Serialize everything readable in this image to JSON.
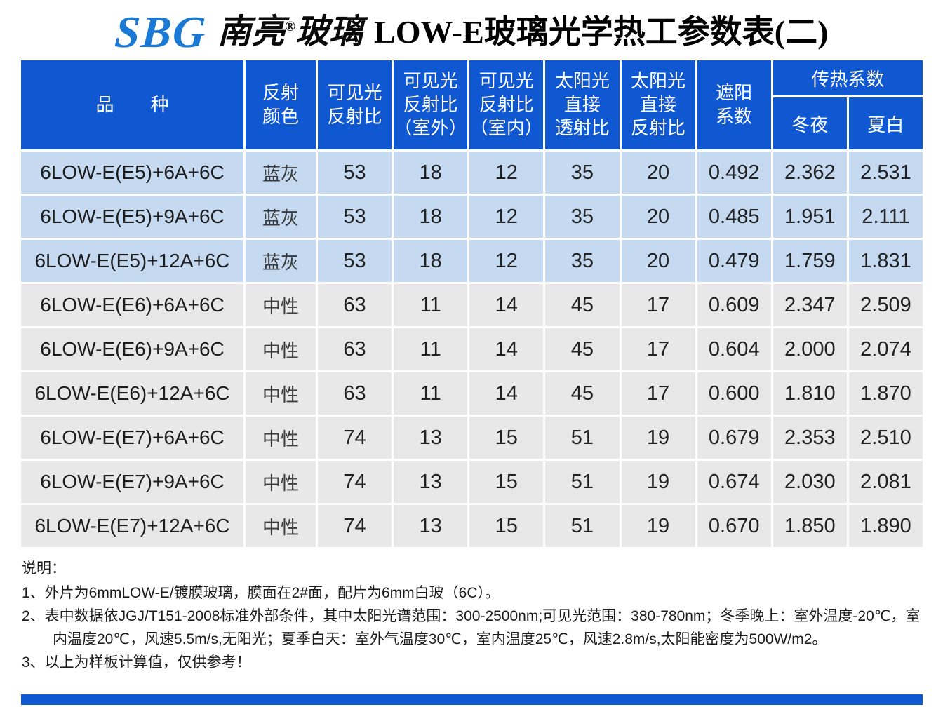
{
  "brand": {
    "sbg": "SBG",
    "name": "南亮",
    "reg": "®",
    "glass": "玻璃"
  },
  "title": "LOW-E玻璃光学热工参数表(二)",
  "colors": {
    "header_blue": "#1058D2",
    "row_blue": "#C5D9F1",
    "row_gray": "#E8E8E8"
  },
  "table": {
    "headers": {
      "product": "品　　种",
      "reflect_color": "反射\n颜色",
      "visible_reflectance": "可见光\n反射比",
      "visible_reflectance_outdoor": "可见光\n反射比\n（室外）",
      "visible_reflectance_indoor": "可见光\n反射比\n（室内）",
      "solar_direct_transmittance": "太阳光\n直接\n透射比",
      "solar_direct_reflectance": "太阳光\n直接\n反射比",
      "shading_coefficient": "遮阳\n系数",
      "heat_transfer": "传热系数",
      "winter_night": "冬夜",
      "summer_day": "夏白"
    },
    "rows": [
      {
        "product": "6LOW-E(E5)+6A+6C",
        "color": "蓝灰",
        "vlr": "53",
        "out": "18",
        "in": "12",
        "st": "35",
        "sr": "20",
        "sc": "0.492",
        "uw": "2.362",
        "us": "2.531"
      },
      {
        "product": "6LOW-E(E5)+9A+6C",
        "color": "蓝灰",
        "vlr": "53",
        "out": "18",
        "in": "12",
        "st": "35",
        "sr": "20",
        "sc": "0.485",
        "uw": "1.951",
        "us": "2.111"
      },
      {
        "product": "6LOW-E(E5)+12A+6C",
        "color": "蓝灰",
        "vlr": "53",
        "out": "18",
        "in": "12",
        "st": "35",
        "sr": "20",
        "sc": "0.479",
        "uw": "1.759",
        "us": "1.831"
      },
      {
        "product": "6LOW-E(E6)+6A+6C",
        "color": "中性",
        "vlr": "63",
        "out": "11",
        "in": "14",
        "st": "45",
        "sr": "17",
        "sc": "0.609",
        "uw": "2.347",
        "us": "2.509"
      },
      {
        "product": "6LOW-E(E6)+9A+6C",
        "color": "中性",
        "vlr": "63",
        "out": "11",
        "in": "14",
        "st": "45",
        "sr": "17",
        "sc": "0.604",
        "uw": "2.000",
        "us": "2.074"
      },
      {
        "product": "6LOW-E(E6)+12A+6C",
        "color": "中性",
        "vlr": "63",
        "out": "11",
        "in": "14",
        "st": "45",
        "sr": "17",
        "sc": "0.600",
        "uw": "1.810",
        "us": "1.870"
      },
      {
        "product": "6LOW-E(E7)+6A+6C",
        "color": "中性",
        "vlr": "74",
        "out": "13",
        "in": "15",
        "st": "51",
        "sr": "19",
        "sc": "0.679",
        "uw": "2.353",
        "us": "2.510"
      },
      {
        "product": "6LOW-E(E7)+9A+6C",
        "color": "中性",
        "vlr": "74",
        "out": "13",
        "in": "15",
        "st": "51",
        "sr": "19",
        "sc": "0.674",
        "uw": "2.030",
        "us": "2.081"
      },
      {
        "product": "6LOW-E(E7)+12A+6C",
        "color": "中性",
        "vlr": "74",
        "out": "13",
        "in": "15",
        "st": "51",
        "sr": "19",
        "sc": "0.670",
        "uw": "1.850",
        "us": "1.890"
      }
    ]
  },
  "notes": {
    "title": "说明：",
    "items": [
      "1、外片为6mmLOW-E/镀膜玻璃，膜面在2#面，配片为6mm白玻（6C）。",
      "2、表中数据依JGJ/T151-2008标准外部条件，其中太阳光谱范围：300-2500nm;可见光范围：380-780nm；冬季晚上：室外温度-20℃，室内温度20℃，风速5.5m/s,无阳光；夏季白天：室外气温度30℃，室内温度25℃，风速2.8m/s,太阳能密度为500W/m2。",
      "3、以上为样板计算值，仅供参考！"
    ]
  }
}
